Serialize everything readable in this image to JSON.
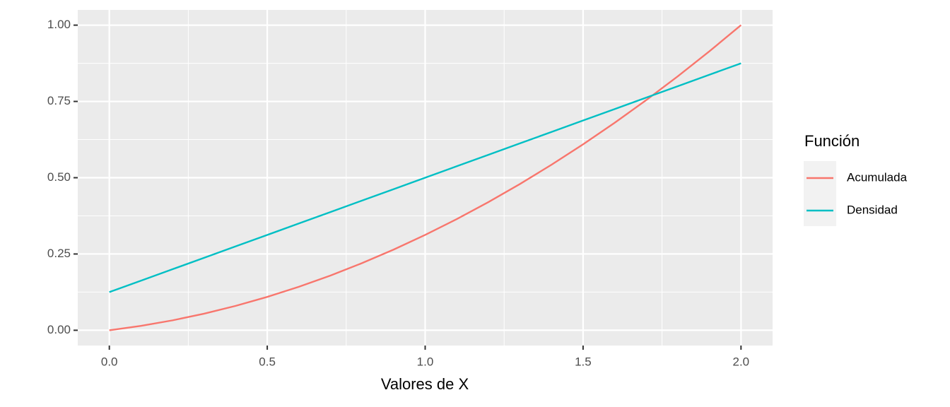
{
  "chart_data": {
    "type": "line",
    "x_label": "Valores de X",
    "legend_title": "Función",
    "x": [
      0,
      0.1,
      0.2,
      0.3,
      0.4,
      0.5,
      0.6,
      0.7,
      0.8,
      0.9,
      1.0,
      1.1,
      1.2,
      1.3,
      1.4,
      1.5,
      1.6,
      1.7,
      1.8,
      1.9,
      2.0
    ],
    "series": [
      {
        "name": "Acumulada",
        "color": "#f8766d",
        "values": [
          0,
          0.014375,
          0.0325,
          0.054375,
          0.08,
          0.109375,
          0.1425,
          0.179375,
          0.22,
          0.264375,
          0.3125,
          0.364375,
          0.42,
          0.479375,
          0.5425,
          0.609375,
          0.68,
          0.754375,
          0.8325,
          0.914375,
          1
        ]
      },
      {
        "name": "Densidad",
        "color": "#00bfc4",
        "values": [
          0.125,
          0.1625,
          0.2,
          0.2375,
          0.275,
          0.3125,
          0.35,
          0.3875,
          0.425,
          0.4625,
          0.5,
          0.5375,
          0.575,
          0.6125,
          0.65,
          0.6875,
          0.725,
          0.7625,
          0.8,
          0.8375,
          0.875
        ]
      }
    ],
    "xlim": [
      -0.1,
      2.1
    ],
    "ylim": [
      -0.05,
      1.05
    ],
    "xticks": [
      {
        "value": 0,
        "label": "0.0"
      },
      0.5,
      {
        "value": 1,
        "label": "1.0"
      },
      1.5,
      {
        "value": 2,
        "label": "2.0"
      }
    ],
    "yticks": [
      {
        "value": 0,
        "label": "0.00"
      },
      0.25,
      {
        "value": 0.5,
        "label": "0.50"
      },
      0.75,
      {
        "value": 1,
        "label": "1.00"
      }
    ],
    "grid": true,
    "legend_position": "right"
  }
}
